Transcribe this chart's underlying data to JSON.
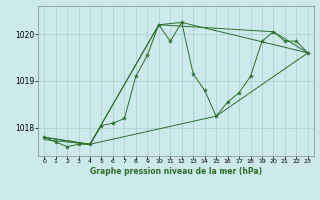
{
  "title": "Graphe pression niveau de la mer (hPa)",
  "bg_color": "#cceaea",
  "grid_color": "#aacccc",
  "line_color": "#2d6e2d",
  "x_min": -0.5,
  "x_max": 23.5,
  "y_min": 1017.4,
  "y_max": 1020.6,
  "yticks": [
    1018,
    1019,
    1020
  ],
  "xticks": [
    0,
    1,
    2,
    3,
    4,
    5,
    6,
    7,
    8,
    9,
    10,
    11,
    12,
    13,
    14,
    15,
    16,
    17,
    18,
    19,
    20,
    21,
    22,
    23
  ],
  "series1": [
    [
      0,
      1017.8
    ],
    [
      1,
      1017.7
    ],
    [
      2,
      1017.6
    ],
    [
      3,
      1017.65
    ],
    [
      4,
      1017.65
    ],
    [
      5,
      1018.05
    ],
    [
      6,
      1018.1
    ],
    [
      7,
      1018.2
    ],
    [
      8,
      1019.1
    ],
    [
      9,
      1019.55
    ],
    [
      10,
      1020.2
    ],
    [
      11,
      1019.85
    ],
    [
      12,
      1020.25
    ],
    [
      13,
      1019.15
    ],
    [
      14,
      1018.8
    ],
    [
      15,
      1018.25
    ],
    [
      16,
      1018.55
    ],
    [
      17,
      1018.75
    ],
    [
      18,
      1019.1
    ],
    [
      19,
      1019.85
    ],
    [
      20,
      1020.05
    ],
    [
      21,
      1019.85
    ],
    [
      22,
      1019.85
    ],
    [
      23,
      1019.6
    ]
  ],
  "series2": [
    [
      0,
      1017.8
    ],
    [
      4,
      1017.65
    ],
    [
      10,
      1020.2
    ],
    [
      12,
      1020.25
    ],
    [
      23,
      1019.6
    ]
  ],
  "series3": [
    [
      0,
      1017.8
    ],
    [
      4,
      1017.65
    ],
    [
      10,
      1020.2
    ],
    [
      20,
      1020.05
    ],
    [
      23,
      1019.6
    ]
  ],
  "series4": [
    [
      0,
      1017.75
    ],
    [
      4,
      1017.65
    ],
    [
      15,
      1018.25
    ],
    [
      23,
      1019.6
    ]
  ]
}
